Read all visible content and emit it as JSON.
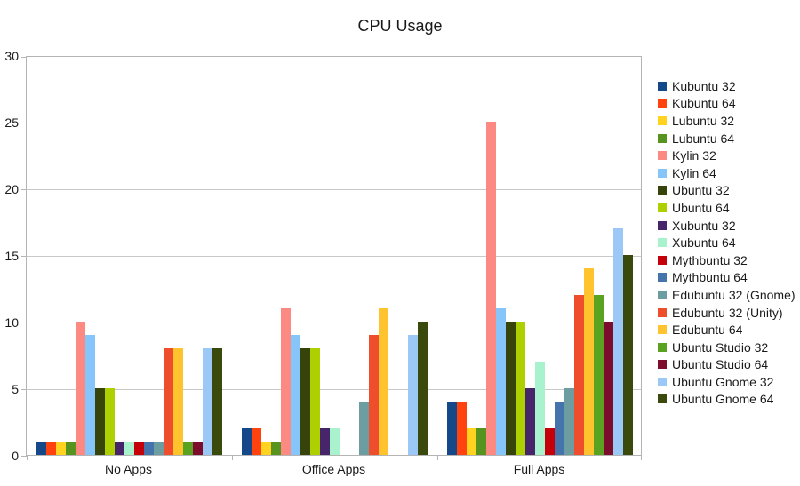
{
  "chart_data": {
    "type": "bar",
    "title": "CPU Usage",
    "categories": [
      "No Apps",
      "Office Apps",
      "Full Apps"
    ],
    "series": [
      {
        "name": "Kubuntu 32",
        "color": "#154889",
        "values": [
          1,
          2,
          4
        ]
      },
      {
        "name": "Kubuntu 64",
        "color": "#FF420E",
        "values": [
          1,
          2,
          4
        ]
      },
      {
        "name": "Lubuntu 32",
        "color": "#FFD320",
        "values": [
          1,
          1,
          2
        ]
      },
      {
        "name": "Lubuntu 64",
        "color": "#57941F",
        "values": [
          1,
          1,
          2
        ]
      },
      {
        "name": "Kylin 32",
        "color": "#FC8A82",
        "values": [
          10,
          11,
          25
        ]
      },
      {
        "name": "Kylin 64",
        "color": "#86C5F9",
        "values": [
          9,
          9,
          11
        ]
      },
      {
        "name": "Ubuntu 32",
        "color": "#364409",
        "values": [
          5,
          8,
          10
        ]
      },
      {
        "name": "Ubuntu 64",
        "color": "#AECF00",
        "values": [
          5,
          8,
          10
        ]
      },
      {
        "name": "Xubuntu 32",
        "color": "#46256B",
        "values": [
          1,
          2,
          5
        ]
      },
      {
        "name": "Xubuntu 64",
        "color": "#A9F2CE",
        "values": [
          1,
          2,
          7
        ]
      },
      {
        "name": "Mythbuntu 32",
        "color": "#C5000B",
        "values": [
          1,
          0,
          2
        ]
      },
      {
        "name": "Mythbuntu 64",
        "color": "#4573AC",
        "values": [
          1,
          0,
          4
        ]
      },
      {
        "name": "Edubuntu 32 (Gnome)",
        "color": "#6C9DA1",
        "values": [
          1,
          4,
          5
        ]
      },
      {
        "name": "Edubuntu 32 (Unity)",
        "color": "#EE4E2B",
        "values": [
          8,
          9,
          12
        ]
      },
      {
        "name": "Edubuntu 64",
        "color": "#FEC32D",
        "values": [
          8,
          11,
          14
        ]
      },
      {
        "name": "Ubuntu Studio 32",
        "color": "#5AA321",
        "values": [
          1,
          0,
          12
        ]
      },
      {
        "name": "Ubuntu Studio 64",
        "color": "#7D0D2D",
        "values": [
          1,
          0,
          10
        ]
      },
      {
        "name": "Ubuntu Gnome 32",
        "color": "#9CC8F7",
        "values": [
          8,
          9,
          17
        ]
      },
      {
        "name": "Ubuntu Gnome 64",
        "color": "#3A4A0C",
        "values": [
          8,
          10,
          15
        ]
      }
    ],
    "ylim": [
      0,
      30
    ],
    "yticks": [
      0,
      5,
      10,
      15,
      20,
      25,
      30
    ],
    "grid": true,
    "legend_position": "right"
  },
  "colors": {
    "grid": "#c9c9c9",
    "axis": "#b4b4b4",
    "text": "#1a1a1a",
    "background": "#ffffff"
  }
}
